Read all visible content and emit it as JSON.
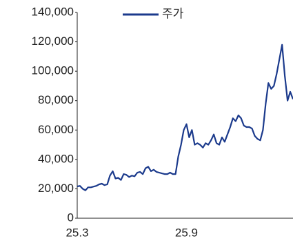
{
  "chart_data": {
    "type": "line",
    "categories": [
      "25.3",
      null,
      null,
      null,
      null,
      null,
      null,
      null,
      null,
      null,
      null,
      null,
      null,
      null,
      null,
      null,
      null,
      null,
      null,
      null,
      null,
      null,
      null,
      null,
      null,
      null,
      null,
      null,
      null,
      null,
      null,
      null,
      null,
      null,
      null,
      null,
      null,
      null,
      null,
      null,
      "25.9",
      null,
      null,
      null,
      null,
      null,
      null,
      null,
      null,
      null,
      null,
      null,
      null,
      null,
      null,
      null,
      null,
      null,
      null,
      null,
      null,
      null,
      null,
      null,
      null,
      null,
      null,
      null,
      null,
      null,
      null,
      null,
      null,
      null,
      null,
      null,
      null,
      null,
      null,
      null
    ],
    "series": [
      {
        "name": "주가",
        "color": "#1b3a8c",
        "values": [
          21600,
          22000,
          20000,
          19000,
          21000,
          21000,
          21500,
          22000,
          23000,
          23500,
          22500,
          23000,
          29000,
          32000,
          27000,
          27500,
          26000,
          30000,
          29500,
          28000,
          29000,
          28500,
          31000,
          31500,
          30000,
          34000,
          35000,
          32000,
          33000,
          31500,
          31000,
          30500,
          30000,
          30000,
          31000,
          30000,
          30000,
          42000,
          50000,
          60000,
          64000,
          55000,
          60000,
          50000,
          51000,
          50000,
          48000,
          51000,
          50000,
          53000,
          57000,
          51000,
          50000,
          55000,
          52000,
          57000,
          62000,
          68000,
          66000,
          70000,
          68000,
          63000,
          62000,
          62000,
          61000,
          56000,
          54000,
          53000,
          60000,
          78000,
          92000,
          88000,
          90000,
          98000,
          108000,
          118000,
          97000,
          80000,
          86000,
          81000
        ]
      }
    ],
    "ylim": [
      0,
      140000
    ],
    "yticks": [
      0,
      {
        "value": 20000,
        "label": "20,000"
      },
      {
        "value": 40000,
        "label": "40,000"
      },
      {
        "value": 60000,
        "label": "60,000"
      },
      {
        "value": 80000,
        "label": "80,000"
      },
      {
        "value": 100000,
        "label": "100,000"
      },
      {
        "value": 120000,
        "label": "120,000"
      },
      {
        "value": 140000,
        "label": "140,000"
      }
    ],
    "legend": "top"
  }
}
